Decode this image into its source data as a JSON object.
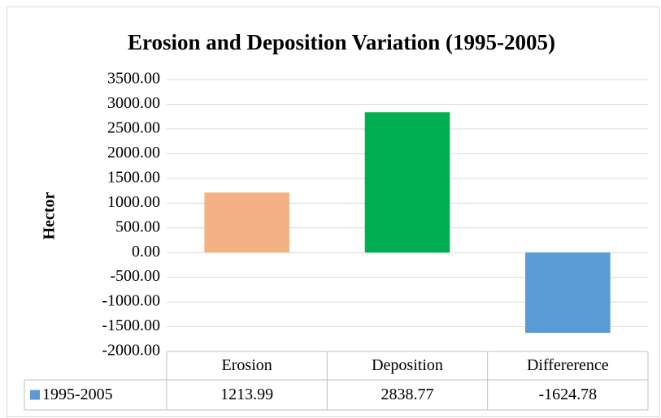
{
  "chart_data": {
    "type": "bar",
    "title": "Erosion and Deposition Variation (1995-2005)",
    "y_label": "Hector",
    "categories": [
      "Erosion",
      "Deposition",
      "Differerence"
    ],
    "series": [
      {
        "name": "1995-2005",
        "color": "#5b9bd5",
        "values": [
          1213.99,
          2838.77,
          -1624.78
        ]
      }
    ],
    "bar_colors": [
      "#f4b183",
      "#00b050",
      "#5b9bd5"
    ],
    "ylim": [
      -2000,
      3500
    ],
    "yticks": [
      {
        "value": -2000,
        "label": "-2000.00"
      },
      {
        "value": -1500,
        "label": "-1500.00"
      },
      {
        "value": -1000,
        "label": "-1000.00"
      },
      {
        "value": -500,
        "label": "-500.00"
      },
      {
        "value": 0,
        "label": "0.00"
      },
      {
        "value": 500,
        "label": "500.00"
      },
      {
        "value": 1000,
        "label": "1000.00"
      },
      {
        "value": 1500,
        "label": "1500.00"
      },
      {
        "value": 2000,
        "label": "2000.00"
      },
      {
        "value": 2500,
        "label": "2500.00"
      },
      {
        "value": 3000,
        "label": "3000.00"
      },
      {
        "value": 3500,
        "label": "3500.00"
      }
    ],
    "grid": true,
    "data_table": true
  }
}
